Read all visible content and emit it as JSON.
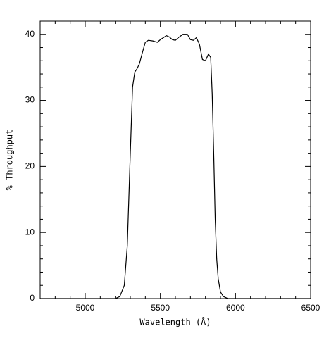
{
  "chart_data": {
    "type": "line",
    "xlabel": "Wavelength (Å)",
    "ylabel": "% Throughput",
    "x": [
      4700,
      5200,
      5230,
      5260,
      5280,
      5300,
      5315,
      5330,
      5345,
      5360,
      5380,
      5400,
      5420,
      5450,
      5480,
      5500,
      5520,
      5540,
      5560,
      5580,
      5600,
      5620,
      5650,
      5680,
      5700,
      5720,
      5740,
      5760,
      5780,
      5800,
      5820,
      5835,
      5845,
      5855,
      5865,
      5875,
      5885,
      5900,
      5920,
      5950,
      6500
    ],
    "series": [
      {
        "name": "throughput",
        "color": "#000000",
        "values": [
          0,
          0,
          0.3,
          2,
          8,
          22,
          32,
          34.3,
          34.8,
          35.5,
          37.2,
          38.8,
          39.1,
          39,
          38.8,
          39.2,
          39.5,
          39.8,
          39.6,
          39.2,
          39.1,
          39.5,
          40,
          40,
          39.2,
          39.1,
          39.5,
          38.5,
          36.2,
          36,
          37,
          36.5,
          31,
          22,
          12,
          6,
          3,
          1,
          0.3,
          0,
          0
        ]
      }
    ],
    "xlim": [
      4700,
      6500
    ],
    "ylim": [
      0,
      42
    ],
    "xticks": [
      5000,
      5500,
      6000,
      6500
    ],
    "yticks": [
      0,
      10,
      20,
      30,
      40
    ],
    "xminorticks": [
      4700,
      4800,
      4900,
      5100,
      5200,
      5300,
      5400,
      5600,
      5700,
      5800,
      5900,
      6100,
      6200,
      6300,
      6400
    ],
    "yminorticks": [
      2,
      4,
      6,
      8,
      12,
      14,
      16,
      18,
      22,
      24,
      26,
      28,
      32,
      34,
      36,
      38,
      42
    ],
    "grid": false
  }
}
